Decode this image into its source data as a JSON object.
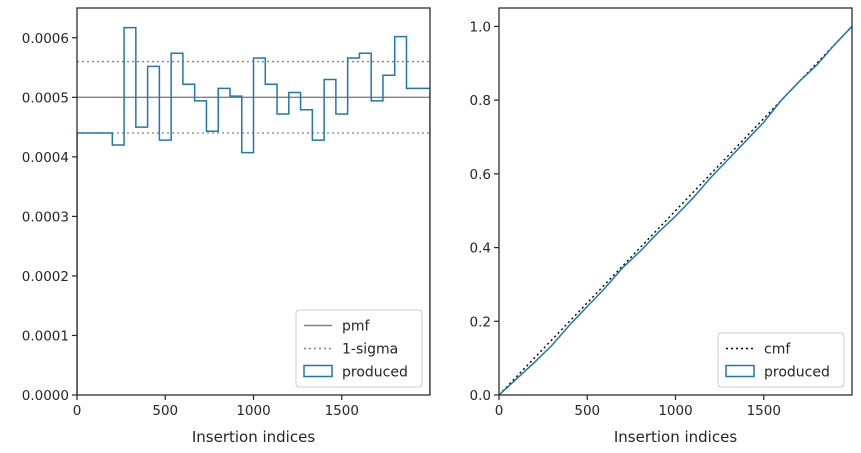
{
  "chart_data": [
    {
      "type": "histogram",
      "xlabel": "Insertion indices",
      "ylabel": "",
      "xlim": [
        0,
        2000
      ],
      "ylim": [
        0,
        0.00065
      ],
      "xticks": [
        0,
        500,
        1000,
        1500
      ],
      "xtick_labels": [
        "0",
        "500",
        "1000",
        "1500"
      ],
      "yticks": [
        0,
        0.0001,
        0.0002,
        0.0003,
        0.0004,
        0.0005,
        0.0006
      ],
      "ytick_labels": [
        "0.0000",
        "0.0001",
        "0.0002",
        "0.0003",
        "0.0004",
        "0.0005",
        "0.0006"
      ],
      "grid": false,
      "legend_position": "lower-right",
      "reference_lines": [
        {
          "name": "pmf",
          "y": 0.0005,
          "style": "solid",
          "color": "#808080"
        },
        {
          "name": "1-sigma",
          "y": 0.00056,
          "style": "dotted",
          "color": "#808080"
        },
        {
          "name": "1-sigma",
          "y": 0.00044,
          "style": "dotted",
          "color": "#808080"
        }
      ],
      "series": [
        {
          "name": "produced",
          "style": "step",
          "color": "#1f77b4",
          "bin_width": 66.67,
          "values": [
            0.00044,
            0.00044,
            0.00044,
            0.00042,
            0.000617,
            0.00045,
            0.000552,
            0.000428,
            0.000574,
            0.000522,
            0.000494,
            0.000443,
            0.000515,
            0.000502,
            0.000407,
            0.000566,
            0.000522,
            0.000472,
            0.000508,
            0.000479,
            0.000428,
            0.00053,
            0.000472,
            0.000566,
            0.000574,
            0.000494,
            0.000537,
            0.000602,
            0.000515,
            0.000515
          ]
        }
      ],
      "legend": [
        "pmf",
        "1-sigma",
        "produced"
      ]
    },
    {
      "type": "line",
      "xlabel": "Insertion indices",
      "ylabel": "",
      "xlim": [
        0,
        2000
      ],
      "ylim": [
        0,
        1.05
      ],
      "xticks": [
        0,
        500,
        1000,
        1500
      ],
      "xtick_labels": [
        "0",
        "500",
        "1000",
        "1500"
      ],
      "yticks": [
        0,
        0.2,
        0.4,
        0.6,
        0.8,
        1.0
      ],
      "ytick_labels": [
        "0.0",
        "0.2",
        "0.4",
        "0.6",
        "0.8",
        "1.0"
      ],
      "grid": false,
      "legend_position": "lower-right",
      "series": [
        {
          "name": "cmf",
          "style": "dotted",
          "color": "#000000",
          "x": [
            0,
            2000
          ],
          "y": [
            0,
            1.0
          ]
        },
        {
          "name": "produced",
          "style": "step",
          "color": "#1f77b4",
          "x": [
            0,
            100,
            200,
            300,
            400,
            500,
            600,
            700,
            800,
            900,
            1000,
            1100,
            1200,
            1300,
            1400,
            1500,
            1600,
            1700,
            1800,
            1900,
            2000
          ],
          "y": [
            0,
            0.044,
            0.088,
            0.135,
            0.19,
            0.24,
            0.29,
            0.345,
            0.39,
            0.44,
            0.485,
            0.535,
            0.59,
            0.64,
            0.69,
            0.74,
            0.8,
            0.85,
            0.895,
            0.95,
            1.0
          ]
        }
      ],
      "legend": [
        "cmf",
        "produced"
      ]
    }
  ]
}
